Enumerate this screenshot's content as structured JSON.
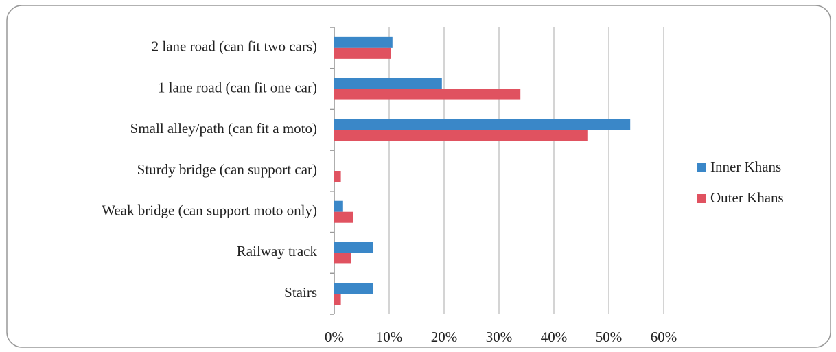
{
  "chart_data": {
    "type": "hbar",
    "categories": [
      "2 lane road (can fit two cars)",
      "1 lane road (can fit one car)",
      "Small alley/path (can fit a moto)",
      "Sturdy bridge (can support car)",
      "Weak bridge (can support  moto only)",
      "Railway track",
      "Stairs"
    ],
    "series": [
      {
        "name": "Inner Khans",
        "color": "#3a87c8",
        "values": [
          10.6,
          19.6,
          53.9,
          0,
          1.6,
          7.0,
          7.0
        ]
      },
      {
        "name": "Outer Khans",
        "color": "#e05260",
        "values": [
          10.3,
          33.9,
          46.1,
          1.2,
          3.5,
          3.0,
          1.2
        ]
      }
    ],
    "xlim": [
      0,
      70
    ],
    "xticks": [
      {
        "value": 0,
        "label": "0%"
      },
      {
        "value": 10,
        "label": "10%"
      },
      {
        "value": 20,
        "label": "20%"
      },
      {
        "value": 30,
        "label": "30%"
      },
      {
        "value": 40,
        "label": "40%"
      },
      {
        "value": 50,
        "label": "50%"
      },
      {
        "value": 60,
        "label": "60%"
      }
    ],
    "grid": true,
    "legend": "right"
  }
}
